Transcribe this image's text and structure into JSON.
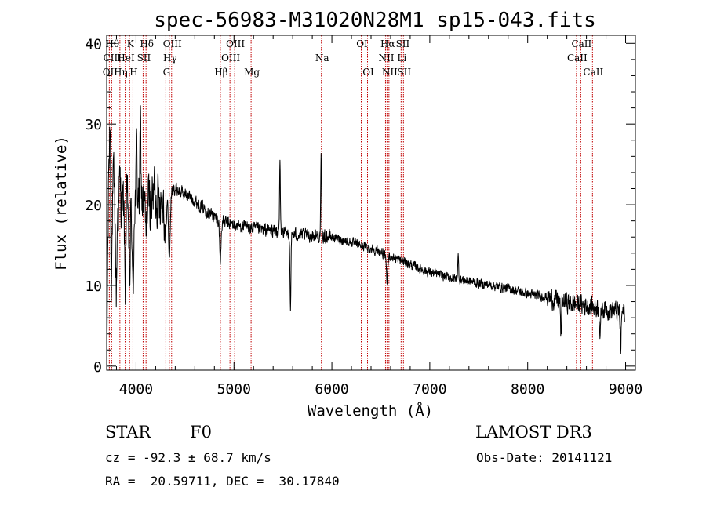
{
  "chart_data": {
    "type": "line",
    "title": "spec-56983-M31020N28M1_sp15-043.fits",
    "xlabel": "Wavelength (Å)",
    "ylabel": "Flux (relative)",
    "xlim": [
      3700,
      9100
    ],
    "ylim": [
      -0.5,
      41
    ],
    "x_ticks": [
      4000,
      5000,
      6000,
      7000,
      8000,
      9000
    ],
    "y_ticks": [
      0,
      10,
      20,
      30,
      40
    ],
    "x_tick_labels": [
      "4000",
      "5000",
      "6000",
      "7000",
      "8000",
      "9000"
    ],
    "y_tick_labels": [
      "0",
      "10",
      "20",
      "30",
      "40"
    ],
    "line_color": "#000000",
    "marker_color": "#c00000",
    "continuum": [
      [
        3700,
        15
      ],
      [
        3760,
        19
      ],
      [
        3850,
        20
      ],
      [
        3950,
        20.5
      ],
      [
        4100,
        20.5
      ],
      [
        4250,
        21
      ],
      [
        4400,
        22
      ],
      [
        4550,
        21
      ],
      [
        4700,
        19.5
      ],
      [
        4850,
        18
      ],
      [
        5000,
        17.5
      ],
      [
        5200,
        17
      ],
      [
        5400,
        16.8
      ],
      [
        5600,
        16.3
      ],
      [
        5800,
        16.2
      ],
      [
        6000,
        16
      ],
      [
        6200,
        15.3
      ],
      [
        6400,
        14.6
      ],
      [
        6600,
        13.6
      ],
      [
        6800,
        12.6
      ],
      [
        7000,
        11.6
      ],
      [
        7200,
        11
      ],
      [
        7400,
        10.5
      ],
      [
        7600,
        10.1
      ],
      [
        7800,
        9.6
      ],
      [
        8000,
        9.0
      ],
      [
        8200,
        8.5
      ],
      [
        8400,
        7.9
      ],
      [
        8600,
        7.5
      ],
      [
        8800,
        7.1
      ],
      [
        8980,
        6.6
      ]
    ],
    "features": [
      {
        "x": 3702,
        "y": 1,
        "w": 4
      },
      {
        "x": 3712,
        "y": 15,
        "w": 4
      },
      {
        "x": 3722,
        "y": 25,
        "w": 4
      },
      {
        "x": 3734,
        "y": 31,
        "w": 5
      },
      {
        "x": 3748,
        "y": 11,
        "w": 5
      },
      {
        "x": 3770,
        "y": 23,
        "w": 6
      },
      {
        "x": 3798,
        "y": 9,
        "w": 6
      },
      {
        "x": 3835,
        "y": 23,
        "w": 6
      },
      {
        "x": 3889,
        "y": 10,
        "w": 6
      },
      {
        "x": 3934,
        "y": 10.5,
        "w": 7
      },
      {
        "x": 3968,
        "y": 8,
        "w": 7
      },
      {
        "x": 4006,
        "y": 27,
        "w": 5
      },
      {
        "x": 4045,
        "y": 29.5,
        "w": 5
      },
      {
        "x": 4102,
        "y": 16.5,
        "w": 8
      },
      {
        "x": 4190,
        "y": 22.5,
        "w": 6
      },
      {
        "x": 4300,
        "y": 15.5,
        "w": 9
      },
      {
        "x": 4340,
        "y": 13.5,
        "w": 9
      },
      {
        "x": 4861,
        "y": 13,
        "w": 7
      },
      {
        "x": 5470,
        "y": 25.5,
        "w": 4
      },
      {
        "x": 5577,
        "y": 7.5,
        "w": 5
      },
      {
        "x": 5890,
        "y": 25.5,
        "w": 4
      },
      {
        "x": 6563,
        "y": 10.5,
        "w": 8
      },
      {
        "x": 7290,
        "y": 13.5,
        "w": 5
      },
      {
        "x": 8340,
        "y": 3.8,
        "w": 5
      },
      {
        "x": 8740,
        "y": 3.3,
        "w": 5
      },
      {
        "x": 8950,
        "y": 2.2,
        "w": 5
      }
    ],
    "noise": [
      {
        "from": 3700,
        "to": 4300,
        "amp": 4.5
      },
      {
        "from": 4300,
        "to": 6000,
        "amp": 1.1
      },
      {
        "from": 6000,
        "to": 8200,
        "amp": 0.8
      },
      {
        "from": 8200,
        "to": 9000,
        "amp": 1.7
      }
    ],
    "line_markers": [
      {
        "x": 3727,
        "label": "OII",
        "row": 2
      },
      {
        "x": 3750,
        "label": "Hθ",
        "row": 0
      },
      {
        "x": 3750,
        "label": "CIII",
        "row": 1
      },
      {
        "x": 3835,
        "label": "Hη",
        "row": 2
      },
      {
        "x": 3889,
        "label": "HeI",
        "row": 1
      },
      {
        "x": 3934,
        "label": "K",
        "row": 0
      },
      {
        "x": 3968,
        "label": "H",
        "row": 2
      },
      {
        "x": 4072,
        "label": "SII",
        "row": 1
      },
      {
        "x": 4102,
        "label": "Hδ",
        "row": 0
      },
      {
        "x": 4304,
        "label": "G",
        "row": 2
      },
      {
        "x": 4340,
        "label": "Hγ",
        "row": 1
      },
      {
        "x": 4363,
        "label": "OIII",
        "row": 0
      },
      {
        "x": 4861,
        "label": "Hβ",
        "row": 2
      },
      {
        "x": 4959,
        "label": "OIII",
        "row": 1
      },
      {
        "x": 5007,
        "label": "OIII",
        "row": 0
      },
      {
        "x": 5175,
        "label": "Mg",
        "row": 2
      },
      {
        "x": 5893,
        "label": "Na",
        "row": 1
      },
      {
        "x": 6300,
        "label": "OI",
        "row": 0
      },
      {
        "x": 6364,
        "label": "OI",
        "row": 2
      },
      {
        "x": 6548,
        "label": "NII",
        "row": 1
      },
      {
        "x": 6563,
        "label": "Hα",
        "row": 0
      },
      {
        "x": 6583,
        "label": "NII",
        "row": 2
      },
      {
        "x": 6707,
        "label": "Li",
        "row": 1
      },
      {
        "x": 6716,
        "label": "SII",
        "row": 0
      },
      {
        "x": 6731,
        "label": "SII",
        "row": 2
      },
      {
        "x": 8498,
        "label": "CaII",
        "row": 1
      },
      {
        "x": 8542,
        "label": "CaII",
        "row": 0
      },
      {
        "x": 8662,
        "label": "CaII",
        "row": 2
      }
    ]
  },
  "info": {
    "class": "STAR",
    "subclass": "F0",
    "survey": "LAMOST DR3",
    "redshift": "cz = -92.3 ± 68.7 km/s",
    "obs_date": "Obs-Date: 20141121",
    "coords": "RA =  20.59711, DEC =  30.17840"
  }
}
